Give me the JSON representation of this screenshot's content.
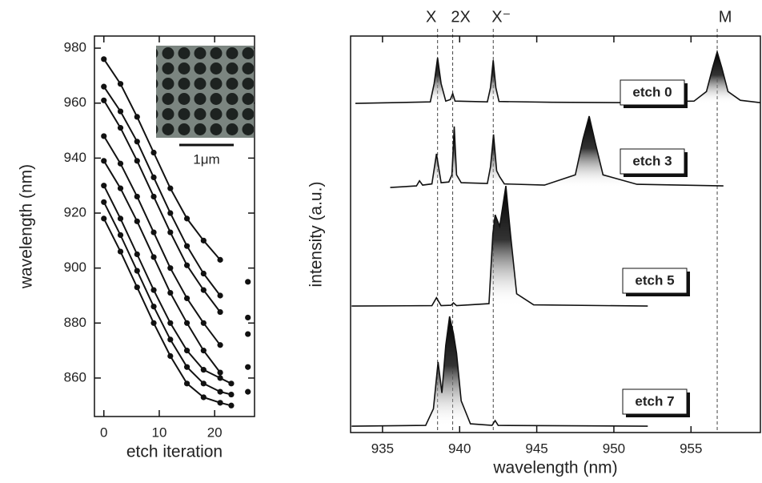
{
  "chart_data": [
    {
      "type": "line",
      "xlabel": "etch iteration",
      "ylabel": "wavelength (nm)",
      "xlim": [
        -1.7,
        27.2
      ],
      "ylim": [
        846,
        984.4
      ],
      "xticks": [
        0,
        10,
        20
      ],
      "yticks": [
        860,
        880,
        900,
        920,
        940,
        960,
        980
      ],
      "markers": true,
      "inset_label": "1μm",
      "x": [
        0,
        3,
        6,
        9,
        12,
        15,
        18,
        21,
        23,
        26
      ],
      "series": [
        {
          "color": "#111111",
          "values": [
            976,
            967,
            955,
            942,
            929,
            918,
            910,
            903,
            null,
            895
          ]
        },
        {
          "color": "#111111",
          "values": [
            966,
            957,
            946,
            933,
            920,
            908,
            898,
            890,
            null,
            882
          ]
        },
        {
          "color": "#111111",
          "values": [
            961,
            951,
            939,
            926,
            913,
            901,
            892,
            884,
            null,
            876
          ]
        },
        {
          "color": "#111111",
          "values": [
            948,
            938,
            926,
            913,
            900,
            889,
            880,
            872,
            null,
            864
          ]
        },
        {
          "color": "#111111",
          "values": [
            939,
            929,
            917,
            904,
            891,
            880,
            870,
            862,
            null,
            855
          ]
        },
        {
          "color": "#111111",
          "values": [
            930,
            918,
            905,
            892,
            880,
            870,
            863,
            860,
            858,
            null
          ]
        },
        {
          "color": "#111111",
          "values": [
            924,
            912,
            899,
            886,
            874,
            864,
            858,
            855,
            854,
            null
          ]
        },
        {
          "color": "#111111",
          "values": [
            918,
            906,
            893,
            880,
            868,
            858,
            853,
            851,
            850,
            null
          ]
        }
      ]
    },
    {
      "type": "line",
      "xlabel": "wavelength (nm)",
      "ylabel": "intensity (a.u.)",
      "xlim": [
        932.93,
        959.5
      ],
      "ylim": [
        0,
        10
      ],
      "xticks": [
        935,
        940,
        945,
        950,
        955
      ],
      "area_fill": true,
      "annotations": [
        {
          "text": "X",
          "x": 938.57
        },
        {
          "text": "2X",
          "x": 939.55
        },
        {
          "text": "X⁻",
          "x": 942.18
        },
        {
          "text": "M",
          "x": 956.7
        }
      ],
      "series": [
        {
          "name": "etch 0",
          "color": "#111111",
          "x": [
            933.24,
            938.1,
            938.35,
            938.57,
            938.8,
            939.1,
            939.4,
            939.55,
            939.7,
            941.8,
            942.0,
            942.18,
            942.35,
            942.55,
            946,
            951,
            955.2,
            956.0,
            956.4,
            956.7,
            957.0,
            957.4,
            958.2,
            959.5
          ],
          "values": [
            8.3,
            8.34,
            8.8,
            9.45,
            8.8,
            8.36,
            8.4,
            8.55,
            8.36,
            8.34,
            8.7,
            9.39,
            8.7,
            8.35,
            8.33,
            8.32,
            8.36,
            8.6,
            9.2,
            9.6,
            9.2,
            8.6,
            8.38,
            8.32
          ]
        },
        {
          "name": "etch 3",
          "color": "#111111",
          "x": [
            935.5,
            937.2,
            937.4,
            937.6,
            938.2,
            938.5,
            938.8,
            939.3,
            939.5,
            939.65,
            939.8,
            940.1,
            941.8,
            942.0,
            942.2,
            942.4,
            942.6,
            942.9,
            945.5,
            947.5,
            948.0,
            948.4,
            948.8,
            949.3,
            951.5,
            957.1
          ],
          "values": [
            6.18,
            6.22,
            6.35,
            6.24,
            6.27,
            7.03,
            6.3,
            6.32,
            6.5,
            7.72,
            6.5,
            6.3,
            6.28,
            6.7,
            7.52,
            6.6,
            6.45,
            6.27,
            6.24,
            6.5,
            7.4,
            7.98,
            7.3,
            6.5,
            6.26,
            6.22
          ]
        },
        {
          "name": "etch 5",
          "color": "#111111",
          "x": [
            933.0,
            938.2,
            938.5,
            938.8,
            939.45,
            939.6,
            939.8,
            941.9,
            942.15,
            942.3,
            942.6,
            943.0,
            943.3,
            943.7,
            944.8,
            952.2
          ],
          "values": [
            3.19,
            3.2,
            3.4,
            3.2,
            3.21,
            3.27,
            3.2,
            3.25,
            5.0,
            5.49,
            5.2,
            6.22,
            5.0,
            3.5,
            3.22,
            3.19
          ]
        },
        {
          "name": "etch 7",
          "color": "#111111",
          "x": [
            933.0,
            937.8,
            938.3,
            938.6,
            938.85,
            939.1,
            939.35,
            939.6,
            939.8,
            940.1,
            940.7,
            942.1,
            942.3,
            942.5,
            952.2
          ],
          "values": [
            0.16,
            0.18,
            0.6,
            1.78,
            1.0,
            2.2,
            2.93,
            2.5,
            2.0,
            0.8,
            0.22,
            0.18,
            0.3,
            0.18,
            0.16
          ]
        }
      ]
    }
  ]
}
